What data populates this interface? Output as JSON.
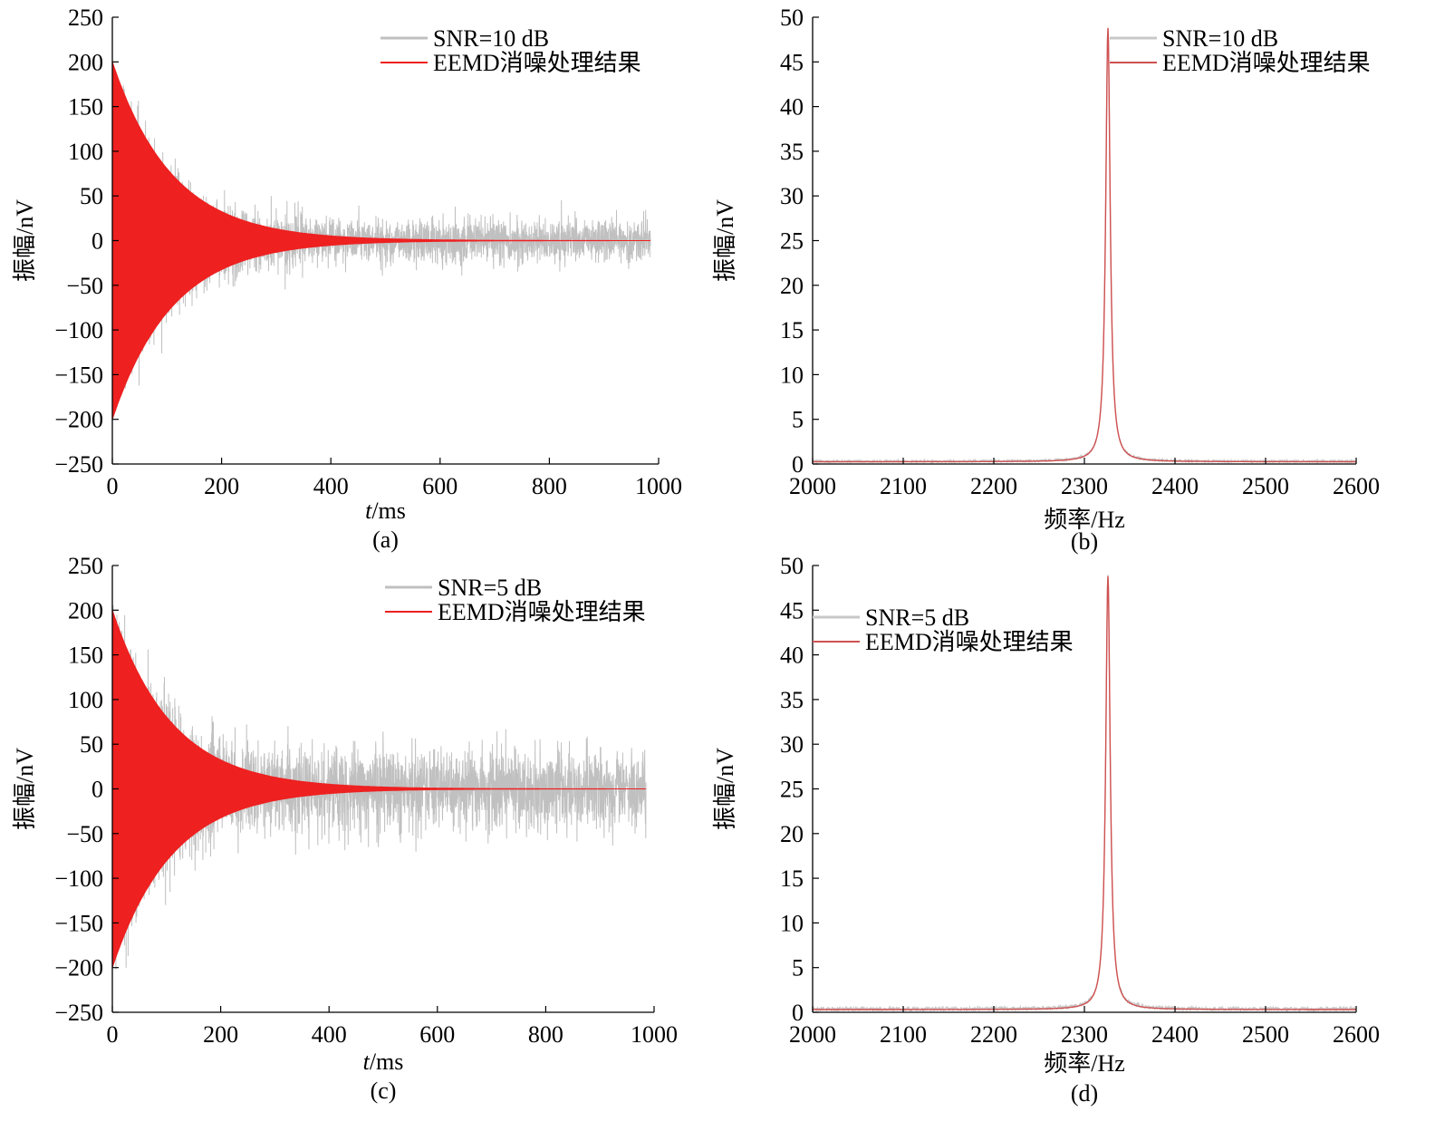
{
  "chart_data": [
    {
      "panel": "(a)",
      "type": "line",
      "xlabel_italic": "t",
      "xlabel_rest": "/ms",
      "ylabel": "振幅/nV",
      "xlim": [
        0,
        1000
      ],
      "ylim": [
        -250,
        250
      ],
      "xticks": [
        0,
        200,
        400,
        600,
        800,
        1000
      ],
      "yticks": [
        250,
        200,
        150,
        100,
        50,
        0,
        -50,
        -100,
        -150,
        -200,
        -250
      ],
      "grid": false,
      "legend_position": "top-right",
      "series": [
        {
          "name": "SNR=10 dB",
          "color": "#c0c0c0",
          "kind": "noisy decaying oscillation",
          "amplitude": 200,
          "decay_ms": 110,
          "noise_std": 12,
          "x_end": 985
        },
        {
          "name": "EEMD消噪处理结果",
          "color": "#ee2020",
          "kind": "decaying oscillation envelope",
          "amplitude": 200,
          "decay_ms": 110,
          "x_end": 985
        }
      ]
    },
    {
      "panel": "(b)",
      "type": "line",
      "xlabel_italic": "",
      "xlabel_rest": "频率/Hz",
      "ylabel": "振幅/nV",
      "xlim": [
        2000,
        2600
      ],
      "ylim": [
        0,
        50
      ],
      "xticks": [
        2000,
        2100,
        2200,
        2300,
        2400,
        2500,
        2600
      ],
      "yticks": [
        50,
        45,
        40,
        35,
        30,
        25,
        20,
        15,
        10,
        5,
        0
      ],
      "grid": false,
      "legend_position": "top-right",
      "series": [
        {
          "name": "SNR=10 dB",
          "color": "#c8c8c8",
          "kind": "spectrum",
          "peak_x": 2326,
          "peak_y": 48.8,
          "baseline": 0.25,
          "noise": 0.12
        },
        {
          "name": "EEMD消噪处理结果",
          "color": "#d05050",
          "kind": "spectrum",
          "peak_x": 2326,
          "peak_y": 48.8,
          "baseline": 0.25
        }
      ]
    },
    {
      "panel": "(c)",
      "type": "line",
      "xlabel_italic": "t",
      "xlabel_rest": "/ms",
      "ylabel": "振幅/nV",
      "xlim": [
        0,
        1000
      ],
      "ylim": [
        -250,
        250
      ],
      "xticks": [
        0,
        200,
        400,
        600,
        800,
        1000
      ],
      "yticks": [
        250,
        200,
        150,
        100,
        50,
        0,
        -50,
        -100,
        -150,
        -200,
        -250
      ],
      "grid": false,
      "legend_position": "top-right",
      "series": [
        {
          "name": "SNR=5 dB",
          "color": "#c0c0c0",
          "kind": "noisy decaying oscillation",
          "amplitude": 200,
          "decay_ms": 110,
          "noise_std": 22,
          "x_end": 985
        },
        {
          "name": "EEMD消噪处理结果",
          "color": "#ee2020",
          "kind": "decaying oscillation envelope",
          "amplitude": 200,
          "decay_ms": 110,
          "x_end": 985
        }
      ]
    },
    {
      "panel": "(d)",
      "type": "line",
      "xlabel_italic": "",
      "xlabel_rest": "频率/Hz",
      "ylabel": "振幅/nV",
      "xlim": [
        2000,
        2600
      ],
      "ylim": [
        0,
        50
      ],
      "xticks": [
        2000,
        2100,
        2200,
        2300,
        2400,
        2500,
        2600
      ],
      "yticks": [
        50,
        45,
        40,
        35,
        30,
        25,
        20,
        15,
        10,
        5,
        0
      ],
      "grid": false,
      "legend_position": "top-left",
      "series": [
        {
          "name": "SNR=5 dB",
          "color": "#c8c8c8",
          "kind": "spectrum",
          "peak_x": 2326,
          "peak_y": 48.8,
          "baseline": 0.3,
          "noise": 0.2
        },
        {
          "name": "EEMD消噪处理结果",
          "color": "#d05050",
          "kind": "spectrum",
          "peak_x": 2326,
          "peak_y": 48.8,
          "baseline": 0.3
        }
      ]
    }
  ]
}
